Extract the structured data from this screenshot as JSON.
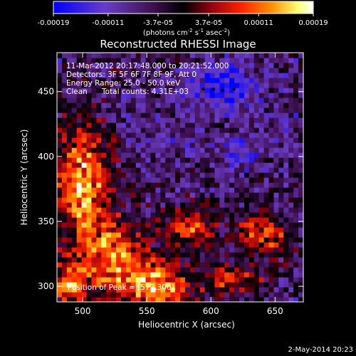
{
  "chart_data": {
    "type": "heatmap",
    "title": "Reconstructed RHESSI Image",
    "xlabel": "Heliocentric X (arcsec)",
    "ylabel": "Heliocentric Y (arcsec)",
    "xlim": [
      480,
      672
    ],
    "ylim": [
      288,
      480
    ],
    "x_ticks": [
      500,
      550,
      600,
      650
    ],
    "y_ticks": [
      300,
      350,
      400,
      450
    ],
    "colorbar": {
      "range": [
        -0.00019,
        0.00019
      ],
      "ticks": [
        "-0.00019",
        "-0.00011",
        "-3.7e-05",
        "3.7e-05",
        "0.00011",
        "0.00019"
      ],
      "tick_values": [
        -0.00019,
        -0.00011,
        -3.7e-05,
        3.7e-05,
        0.00011,
        0.00019
      ],
      "units_text": "(photons cm",
      "units_exp1": "-2",
      "units_mid": " s",
      "units_exp2": "-1",
      "units_tail": " asec",
      "units_exp3": "-2",
      "units_close": ")",
      "colors": [
        "#0000ff",
        "#6a3cc8",
        "#401050",
        "#000000",
        "#8a0010",
        "#ff2000",
        "#ff9000",
        "#ffff70",
        "#ffffff"
      ]
    },
    "annotations": {
      "time_range": "11-Mar-2012 20:17:48.000 to 20:21:52.000",
      "detectors": "Detectors: 3F 5F 6F 7F 8F 9F, Att 0",
      "energy": "Energy Range: 25.0 - 50.0 keV",
      "clean_label": "Clean",
      "total_counts": "Total counts: 4.31E+03",
      "peak": "Position of Peak = [572,300]"
    },
    "grid": false,
    "legend": "none"
  },
  "footer": {
    "date": "2-May-2014 20:23"
  }
}
